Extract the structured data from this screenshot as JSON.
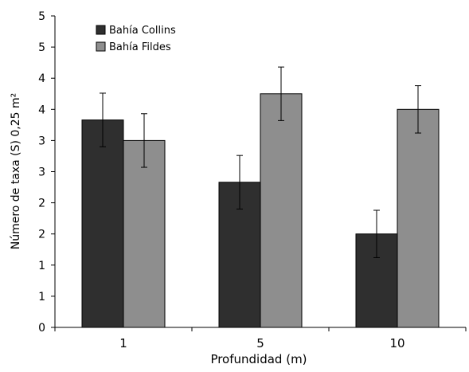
{
  "chart_data": {
    "type": "bar",
    "title": "",
    "xlabel": "Profundidad (m)",
    "ylabel": "Número de taxa (S) 0,25 m²",
    "categories": [
      "1",
      "5",
      "10"
    ],
    "y_tick_labels": [
      "0",
      "1",
      "1",
      "2",
      "2",
      "3",
      "3",
      "4",
      "4",
      "5",
      "5"
    ],
    "ylim": [
      0,
      5
    ],
    "grid": false,
    "legend_position": "top-left",
    "series": [
      {
        "name": "Bahía Collins",
        "values": [
          3.33,
          2.33,
          1.5
        ],
        "error": [
          0.43,
          0.43,
          0.38
        ],
        "color": "#2f2f2f"
      },
      {
        "name": "Bahía Fildes",
        "values": [
          3.0,
          3.75,
          3.5
        ],
        "error": [
          0.43,
          0.43,
          0.38
        ],
        "color": "#8e8e8e"
      }
    ]
  }
}
